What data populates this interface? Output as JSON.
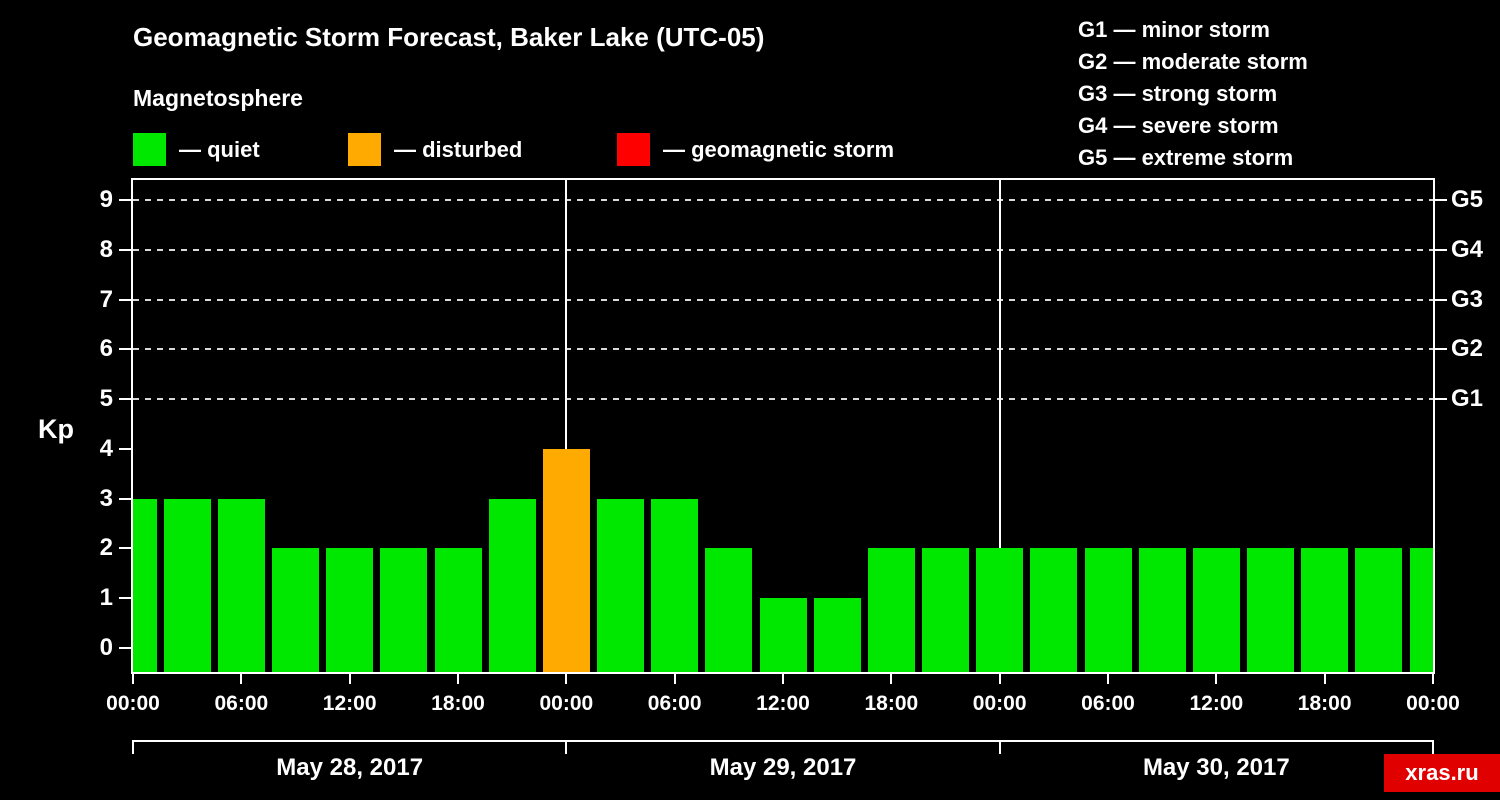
{
  "title": "Geomagnetic Storm Forecast, Baker Lake (UTC-05)",
  "subtitle": "Magnetosphere",
  "legend": {
    "items": [
      {
        "label": "— quiet",
        "state": "quiet",
        "color": "#00e800"
      },
      {
        "label": "— disturbed",
        "state": "disturbed",
        "color": "#ffaa00"
      },
      {
        "label": "— geomagnetic storm",
        "state": "storm",
        "color": "#ff0000"
      }
    ]
  },
  "storm_scale_legend": [
    "G1 — minor storm",
    "G2 — moderate storm",
    "G3 — strong storm",
    "G4 — severe storm",
    "G5 — extreme storm"
  ],
  "watermark": "xras.ru",
  "watermark_bg": "#e00000",
  "chart_data": {
    "type": "bar",
    "title": "Geomagnetic Storm Forecast, Baker Lake (UTC-05)",
    "ylabel": "Kp",
    "ylim": [
      0,
      9
    ],
    "x_range_hours": [
      0,
      72
    ],
    "x_unit": "hours from May 28, 2017 00:00 (UTC-05), bars centered on 3-hour marks",
    "bar_centers_hours": [
      0,
      3,
      6,
      9,
      12,
      15,
      18,
      21,
      24,
      27,
      30,
      33,
      36,
      39,
      42,
      45,
      48,
      51,
      54,
      57,
      60,
      63,
      66,
      69,
      72
    ],
    "values": [
      3,
      3,
      3,
      2,
      2,
      2,
      2,
      3,
      4,
      3,
      3,
      2,
      1,
      1,
      2,
      2,
      2,
      2,
      2,
      2,
      2,
      2,
      2,
      2,
      2
    ],
    "bar_states": [
      "quiet",
      "quiet",
      "quiet",
      "quiet",
      "quiet",
      "quiet",
      "quiet",
      "quiet",
      "disturbed",
      "quiet",
      "quiet",
      "quiet",
      "quiet",
      "quiet",
      "quiet",
      "quiet",
      "quiet",
      "quiet",
      "quiet",
      "quiet",
      "quiet",
      "quiet",
      "quiet",
      "quiet",
      "quiet"
    ],
    "state_colors": {
      "quiet": "#00e800",
      "disturbed": "#ffaa00",
      "storm": "#ff0000"
    },
    "y_tick_labels": [
      "0",
      "1",
      "2",
      "3",
      "4",
      "5",
      "6",
      "7",
      "8",
      "9"
    ],
    "x_tick_labels": [
      "00:00",
      "06:00",
      "12:00",
      "18:00",
      "00:00",
      "06:00",
      "12:00",
      "18:00",
      "00:00",
      "06:00",
      "12:00",
      "18:00",
      "00:00"
    ],
    "right_axis_ticks": [
      {
        "label": "G1",
        "kp": 5
      },
      {
        "label": "G2",
        "kp": 6
      },
      {
        "label": "G3",
        "kp": 7
      },
      {
        "label": "G4",
        "kp": 8
      },
      {
        "label": "G5",
        "kp": 9
      }
    ],
    "day_labels": [
      "May 28, 2017",
      "May 29, 2017",
      "May 30, 2017"
    ],
    "grid": {
      "horizontal_dashed_at_kp": [
        5,
        6,
        7,
        8,
        9
      ],
      "vertical_solid_at_hours": [
        24,
        48
      ],
      "legend_position": "top"
    }
  }
}
